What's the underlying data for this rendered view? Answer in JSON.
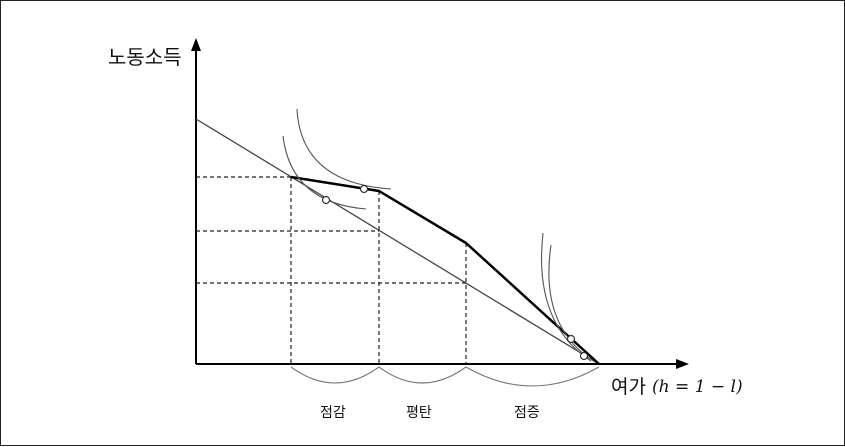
{
  "diagram": {
    "y_axis_label": "노동소득",
    "x_axis_label": "여가",
    "x_axis_formula": "(h = 1 − l)",
    "segments": [
      "점감",
      "평탄",
      "점증"
    ]
  }
}
